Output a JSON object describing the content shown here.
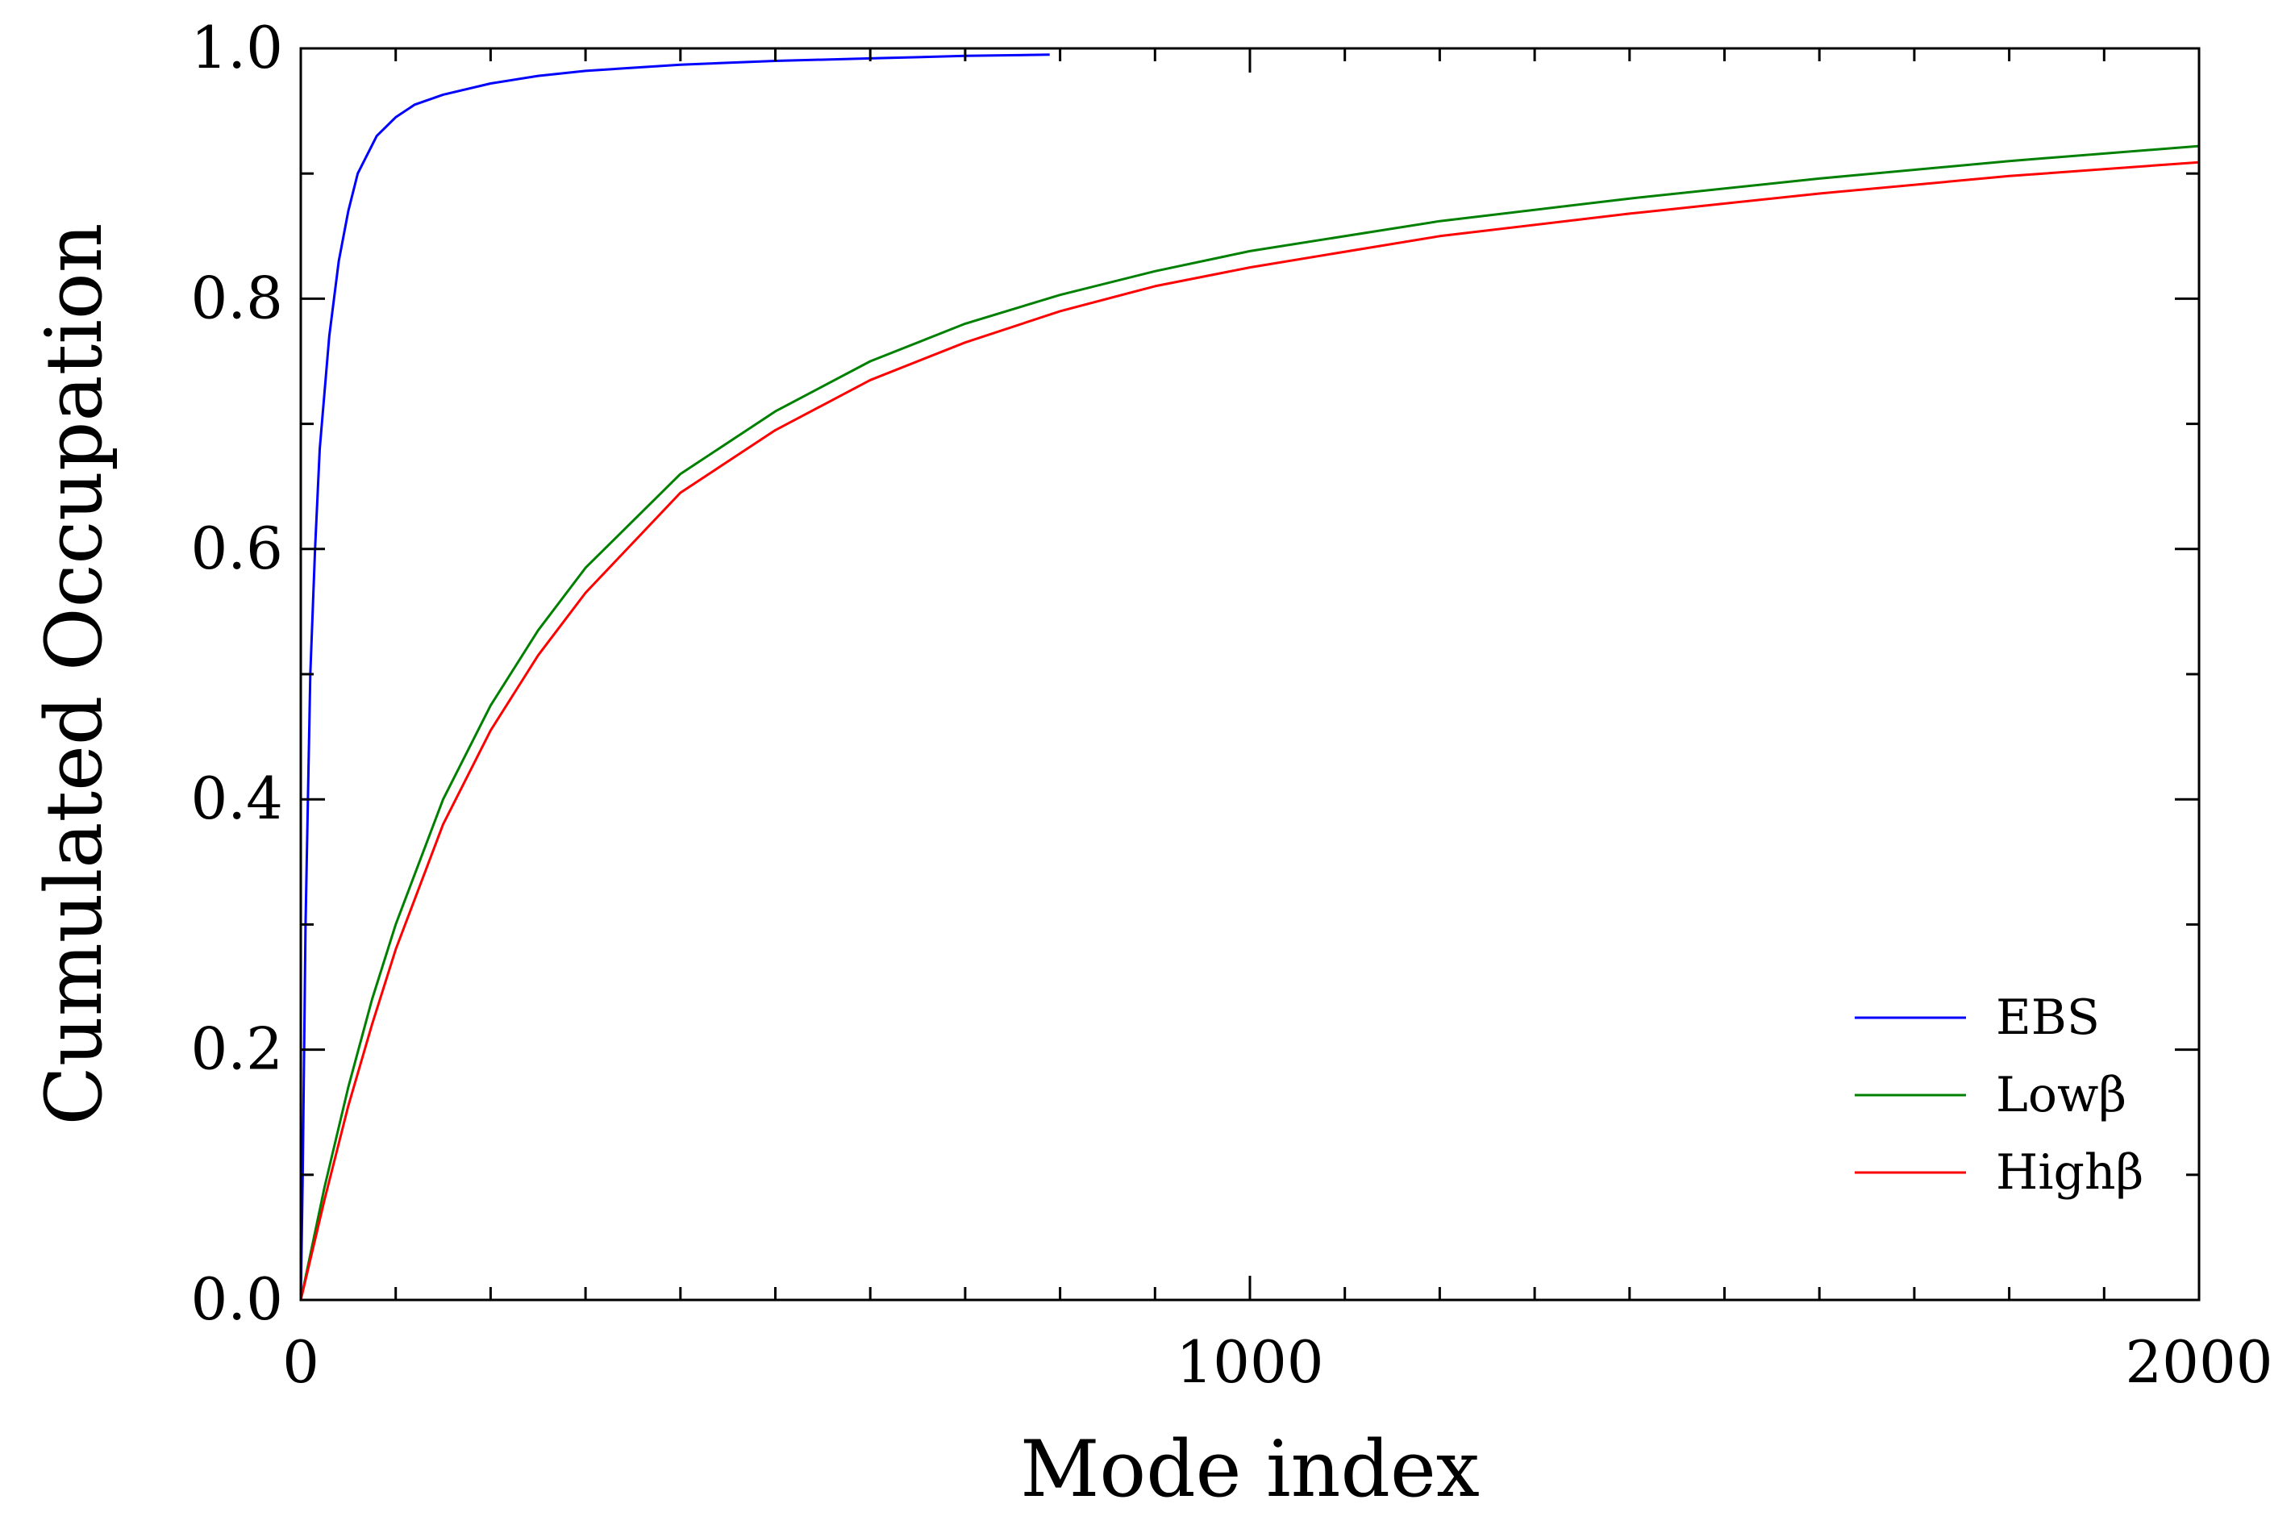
{
  "chart_data": {
    "type": "line",
    "title": "",
    "xlabel": "Mode index",
    "ylabel": "Cumulated Occupation",
    "xlim": [
      0,
      2000
    ],
    "ylim": [
      0,
      1
    ],
    "x_ticks": [
      0,
      1000,
      2000
    ],
    "x_tick_labels": [
      "0",
      "1000",
      "2000"
    ],
    "x_minor_tick_step": 100,
    "y_ticks": [
      0,
      0.2,
      0.4,
      0.6,
      0.8,
      1.0
    ],
    "y_tick_labels": [
      "0.0",
      "0.2",
      "0.4",
      "0.6",
      "0.8",
      "1.0"
    ],
    "y_minor_tick_step": 0.1,
    "grid": false,
    "legend_position": "bottom-right",
    "series": [
      {
        "name": "EBS",
        "color": "#0000ff",
        "x": [
          0,
          2,
          5,
          10,
          15,
          20,
          30,
          40,
          50,
          60,
          80,
          100,
          120,
          150,
          200,
          250,
          300,
          400,
          500,
          600,
          700,
          789
        ],
        "y": [
          0,
          0.1,
          0.3,
          0.5,
          0.6,
          0.68,
          0.77,
          0.83,
          0.87,
          0.9,
          0.93,
          0.945,
          0.955,
          0.963,
          0.972,
          0.978,
          0.982,
          0.987,
          0.99,
          0.992,
          0.994,
          0.995
        ]
      },
      {
        "name": "Lowβ",
        "color": "#008000",
        "x": [
          0,
          25,
          50,
          75,
          100,
          150,
          200,
          250,
          300,
          400,
          500,
          600,
          700,
          800,
          900,
          1000,
          1200,
          1400,
          1600,
          1800,
          2000
        ],
        "y": [
          0,
          0.09,
          0.17,
          0.24,
          0.3,
          0.4,
          0.475,
          0.535,
          0.585,
          0.66,
          0.71,
          0.75,
          0.78,
          0.803,
          0.822,
          0.838,
          0.862,
          0.88,
          0.896,
          0.91,
          0.922
        ]
      },
      {
        "name": "Highβ",
        "color": "#ff0000",
        "x": [
          0,
          25,
          50,
          75,
          100,
          150,
          200,
          250,
          300,
          400,
          500,
          600,
          700,
          800,
          900,
          1000,
          1200,
          1400,
          1600,
          1800,
          2000
        ],
        "y": [
          0,
          0.08,
          0.155,
          0.22,
          0.28,
          0.38,
          0.455,
          0.515,
          0.565,
          0.645,
          0.695,
          0.735,
          0.765,
          0.79,
          0.81,
          0.825,
          0.85,
          0.868,
          0.884,
          0.898,
          0.909
        ]
      }
    ]
  }
}
